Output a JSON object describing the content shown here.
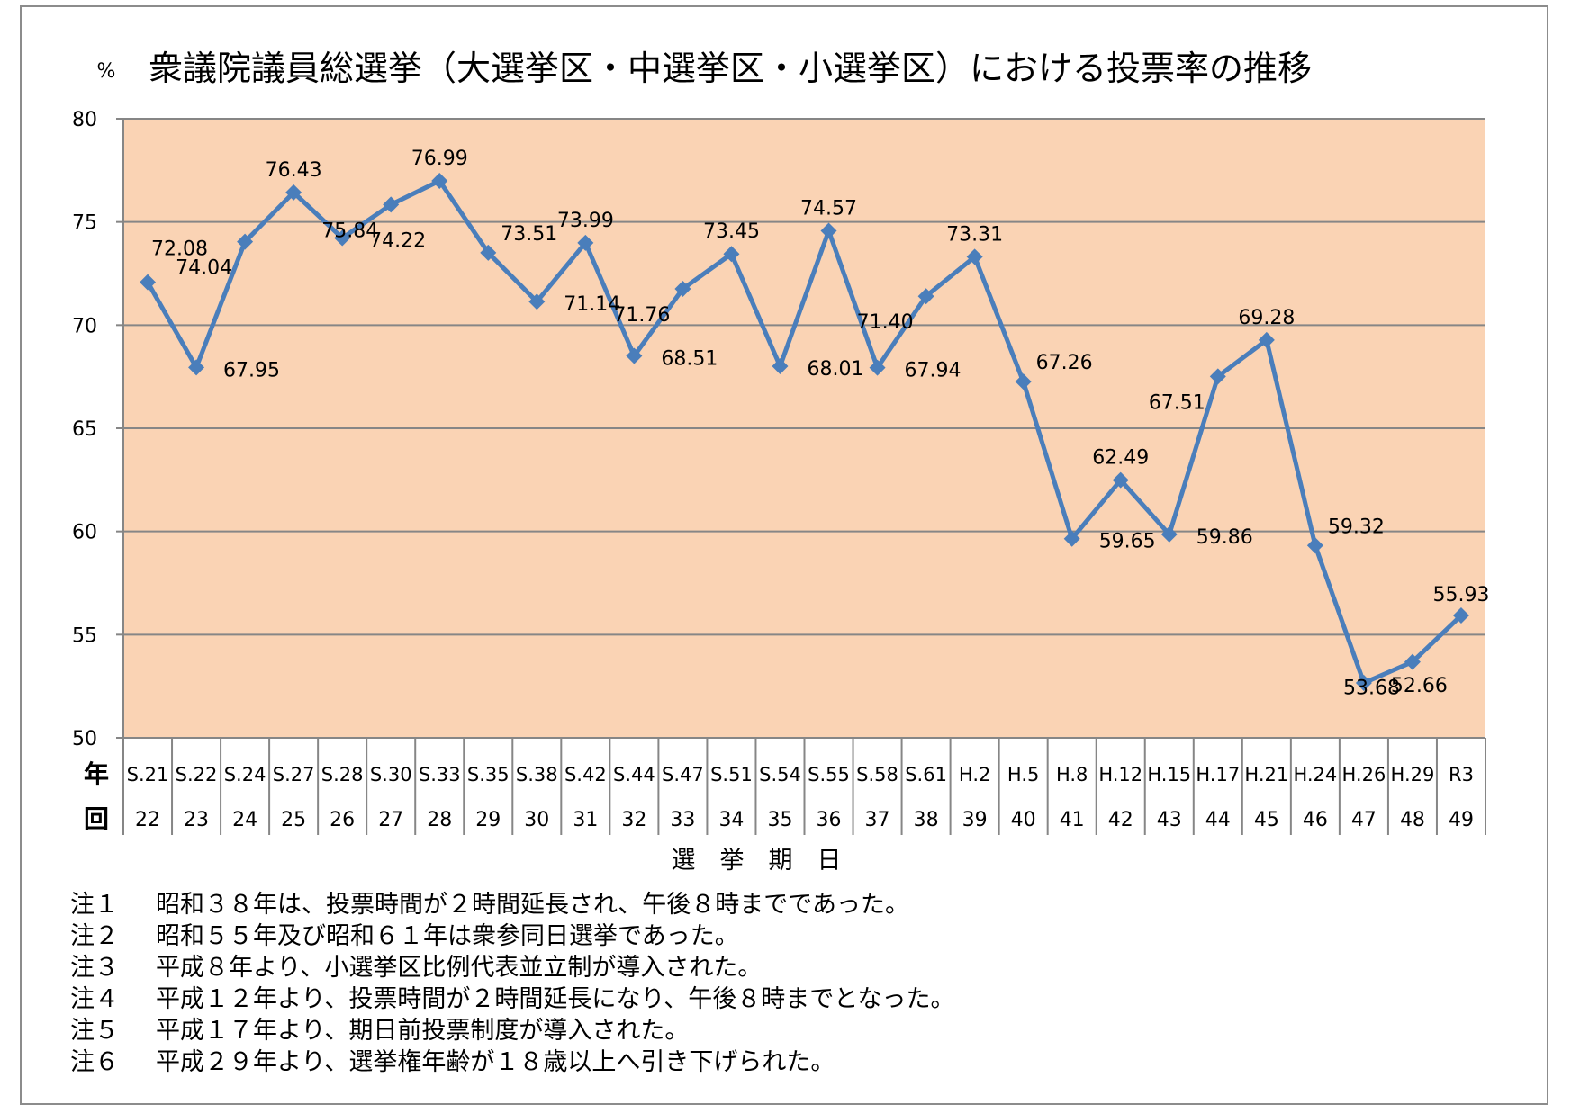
{
  "chart_data": {
    "type": "line",
    "title": "衆議院議員総選挙（大選挙区・中選挙区・小選挙区）における投票率の推移",
    "yunit": "%",
    "xlabel": "選　挙　期　日",
    "row_labels": {
      "year": "年",
      "round": "回"
    },
    "ylim": [
      50,
      80
    ],
    "yticks": [
      50,
      55,
      60,
      65,
      70,
      75,
      80
    ],
    "grid": true,
    "categories": [
      "S.21",
      "S.22",
      "S.24",
      "S.27",
      "S.28",
      "S.30",
      "S.33",
      "S.35",
      "S.38",
      "S.42",
      "S.44",
      "S.47",
      "S.51",
      "S.54",
      "S.55",
      "S.58",
      "S.61",
      "H.2",
      "H.5",
      "H.8",
      "H.12",
      "H.15",
      "H.17",
      "H.21",
      "H.24",
      "H.26",
      "H.29",
      "R3"
    ],
    "rounds": [
      "22",
      "23",
      "24",
      "25",
      "26",
      "27",
      "28",
      "29",
      "30",
      "31",
      "32",
      "33",
      "34",
      "35",
      "36",
      "37",
      "38",
      "39",
      "40",
      "41",
      "42",
      "43",
      "44",
      "45",
      "46",
      "47",
      "48",
      "49"
    ],
    "values": [
      72.08,
      67.95,
      74.04,
      76.43,
      74.22,
      75.84,
      76.99,
      73.51,
      71.14,
      73.99,
      68.51,
      71.76,
      73.45,
      68.01,
      74.57,
      67.94,
      71.4,
      73.31,
      67.26,
      59.65,
      62.49,
      59.86,
      67.51,
      69.28,
      59.32,
      52.66,
      53.68,
      55.93
    ],
    "value_labels": [
      "72.08",
      "67.95",
      "74.04",
      "76.43",
      "74.22",
      "75.84",
      "76.99",
      "73.51",
      "71.14",
      "73.99",
      "68.51",
      "71.76",
      "73.45",
      "68.01",
      "74.57",
      "67.94",
      "71.40",
      "73.31",
      "67.26",
      "59.65",
      "62.49",
      "59.86",
      "67.51",
      "69.28",
      "59.32",
      "52.66",
      "53.68",
      "55.93"
    ],
    "colors": {
      "plot_bg": "#fad3b4",
      "line": "#4a7ebb",
      "grid": "#868686"
    }
  },
  "notes": [
    {
      "num": "注１",
      "text": "昭和３８年は、投票時間が２時間延長され、午後８時までであった。"
    },
    {
      "num": "注２",
      "text": "昭和５５年及び昭和６１年は衆参同日選挙であった。"
    },
    {
      "num": "注３",
      "text": "平成８年より、小選挙区比例代表並立制が導入された。"
    },
    {
      "num": "注４",
      "text": "平成１２年より、投票時間が２時間延長になり、午後８時までとなった。"
    },
    {
      "num": "注５",
      "text": "平成１７年より、期日前投票制度が導入された。"
    },
    {
      "num": "注６",
      "text": "平成２９年より、選挙権年齢が１８歳以上へ引き下げられた。"
    }
  ]
}
